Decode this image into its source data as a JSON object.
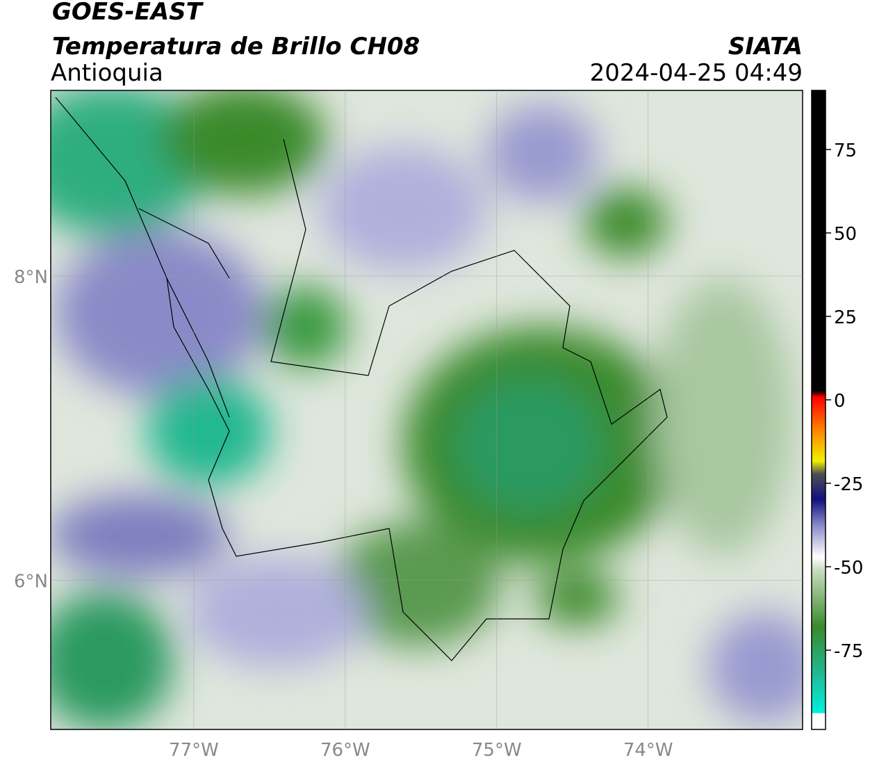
{
  "header": {
    "title": "GOES-EAST",
    "subtitle": "Temperatura de Brillo CH08",
    "region": "Antioquia",
    "source": "SIATA",
    "datetime": "2024-04-25 04:49"
  },
  "map": {
    "xlim": [
      -77.945,
      -72.98
    ],
    "ylim": [
      5.02,
      9.22
    ],
    "xticks": [
      {
        "value": -77,
        "label": "77°W"
      },
      {
        "value": -76,
        "label": "76°W"
      },
      {
        "value": -75,
        "label": "75°W"
      },
      {
        "value": -74,
        "label": "74°W"
      }
    ],
    "yticks": [
      {
        "value": 8,
        "label": "8°N"
      },
      {
        "value": 6,
        "label": "6°N"
      }
    ]
  },
  "colorbar": {
    "lim": [
      -98.75,
      92.7
    ],
    "ticks": [
      75,
      50,
      25,
      0,
      -25,
      -50,
      -75
    ]
  }
}
